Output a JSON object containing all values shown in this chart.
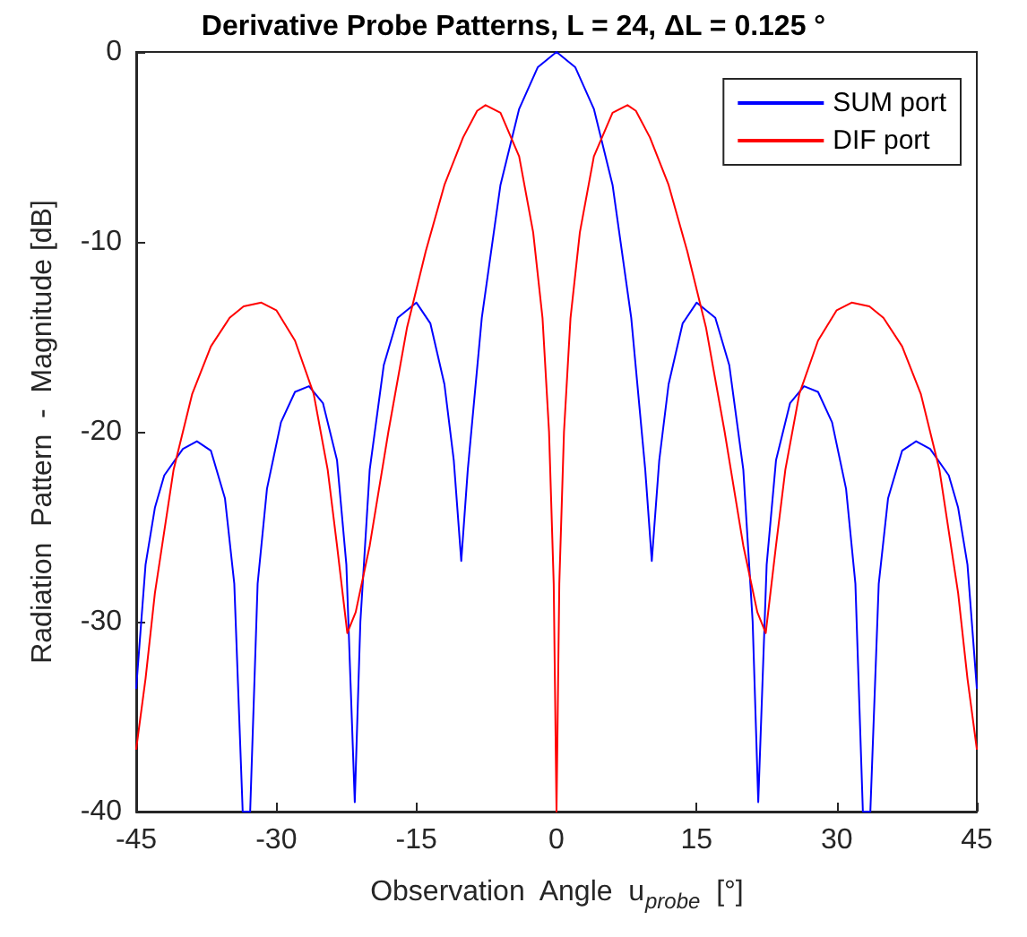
{
  "chart_data": {
    "type": "line",
    "title": "Derivative Probe Patterns, L = 24, ΔL = 0.125 °",
    "xlabel": "Observation  Angle  u$_{probe}$  [°]",
    "ylabel": "Radiation  Pattern  -  Magnitude [dB]",
    "xlim": [
      -45,
      45
    ],
    "xticks": [
      -45,
      -30,
      -15,
      0,
      15,
      30,
      45
    ],
    "ylim": [
      -40,
      0
    ],
    "yticks": [
      -40,
      -30,
      -20,
      -10,
      0
    ],
    "grid": false,
    "legend": "top right",
    "marker": "none",
    "line_style": "solid",
    "series": [
      {
        "name": "SUM port",
        "color": "#0000ff",
        "x": [
          -45,
          -44,
          -43,
          -42,
          -40,
          -38.5,
          -37,
          -35.5,
          -34.5,
          -33.6,
          -32.8,
          -32,
          -31,
          -29.5,
          -28,
          -26.5,
          -25,
          -23.5,
          -22.5,
          -21.6,
          -21,
          -20,
          -18.5,
          -17,
          -15,
          -13.5,
          -12,
          -11,
          -10.2,
          -9.5,
          -8,
          -6,
          -4,
          -2,
          0,
          2,
          4,
          6,
          8,
          9.5,
          10.2,
          11,
          12,
          13.5,
          15,
          17,
          18.5,
          20,
          21,
          21.6,
          22.5,
          23.5,
          25,
          26.5,
          28,
          29.5,
          31,
          32,
          32.8,
          33.6,
          34.5,
          35.5,
          37,
          38.5,
          40,
          42,
          43,
          44,
          45
        ],
        "values": [
          -33.5,
          -27,
          -24,
          -22.3,
          -20.9,
          -20.5,
          -21,
          -23.5,
          -28,
          -40,
          -40,
          -28,
          -23,
          -19.5,
          -17.9,
          -17.6,
          -18.5,
          -21.5,
          -27,
          -39.5,
          -30,
          -22,
          -16.5,
          -14,
          -13.2,
          -14.3,
          -17.5,
          -21.5,
          -26.8,
          -22,
          -14,
          -7,
          -3,
          -0.8,
          0,
          -0.8,
          -3,
          -7,
          -14,
          -22,
          -26.8,
          -21.5,
          -17.5,
          -14.3,
          -13.2,
          -14,
          -16.5,
          -22,
          -30,
          -39.5,
          -27,
          -21.5,
          -18.5,
          -17.6,
          -17.9,
          -19.5,
          -23,
          -28,
          -40,
          -40,
          -28,
          -23.5,
          -21,
          -20.5,
          -20.9,
          -22.3,
          -24,
          -27,
          -33.5
        ]
      },
      {
        "name": "DIF port",
        "color": "#ff0000",
        "x": [
          -45,
          -44,
          -43,
          -41,
          -39,
          -37,
          -35,
          -33.5,
          -31.6,
          -30,
          -28,
          -26,
          -24.5,
          -23.5,
          -22.4,
          -21.5,
          -20,
          -18,
          -16,
          -14,
          -12,
          -10,
          -8.5,
          -7.6,
          -6,
          -4,
          -2.5,
          -1.5,
          -0.8,
          -0.3,
          0,
          0.3,
          0.8,
          1.5,
          2.5,
          4,
          6,
          7.6,
          8.5,
          10,
          12,
          14,
          16,
          18,
          20,
          21.5,
          22.4,
          23.5,
          24.5,
          26,
          28,
          30,
          31.6,
          33.5,
          35,
          37,
          39,
          41,
          43,
          44,
          45
        ],
        "values": [
          -36.7,
          -33,
          -28.5,
          -22,
          -18,
          -15.5,
          -14,
          -13.4,
          -13.2,
          -13.6,
          -15.2,
          -18,
          -22,
          -26,
          -30.6,
          -29.5,
          -26,
          -20,
          -14.5,
          -10.5,
          -7,
          -4.5,
          -3.1,
          -2.8,
          -3.2,
          -5.5,
          -9.5,
          -14,
          -20,
          -28,
          -40,
          -28,
          -20,
          -14,
          -9.5,
          -5.5,
          -3.2,
          -2.8,
          -3.1,
          -4.5,
          -7,
          -10.5,
          -14.5,
          -20,
          -26,
          -29.5,
          -30.6,
          -26,
          -22,
          -18,
          -15.2,
          -13.6,
          -13.2,
          -13.4,
          -14,
          -15.5,
          -18,
          -22,
          -28.5,
          -33,
          -36.7
        ]
      }
    ]
  }
}
